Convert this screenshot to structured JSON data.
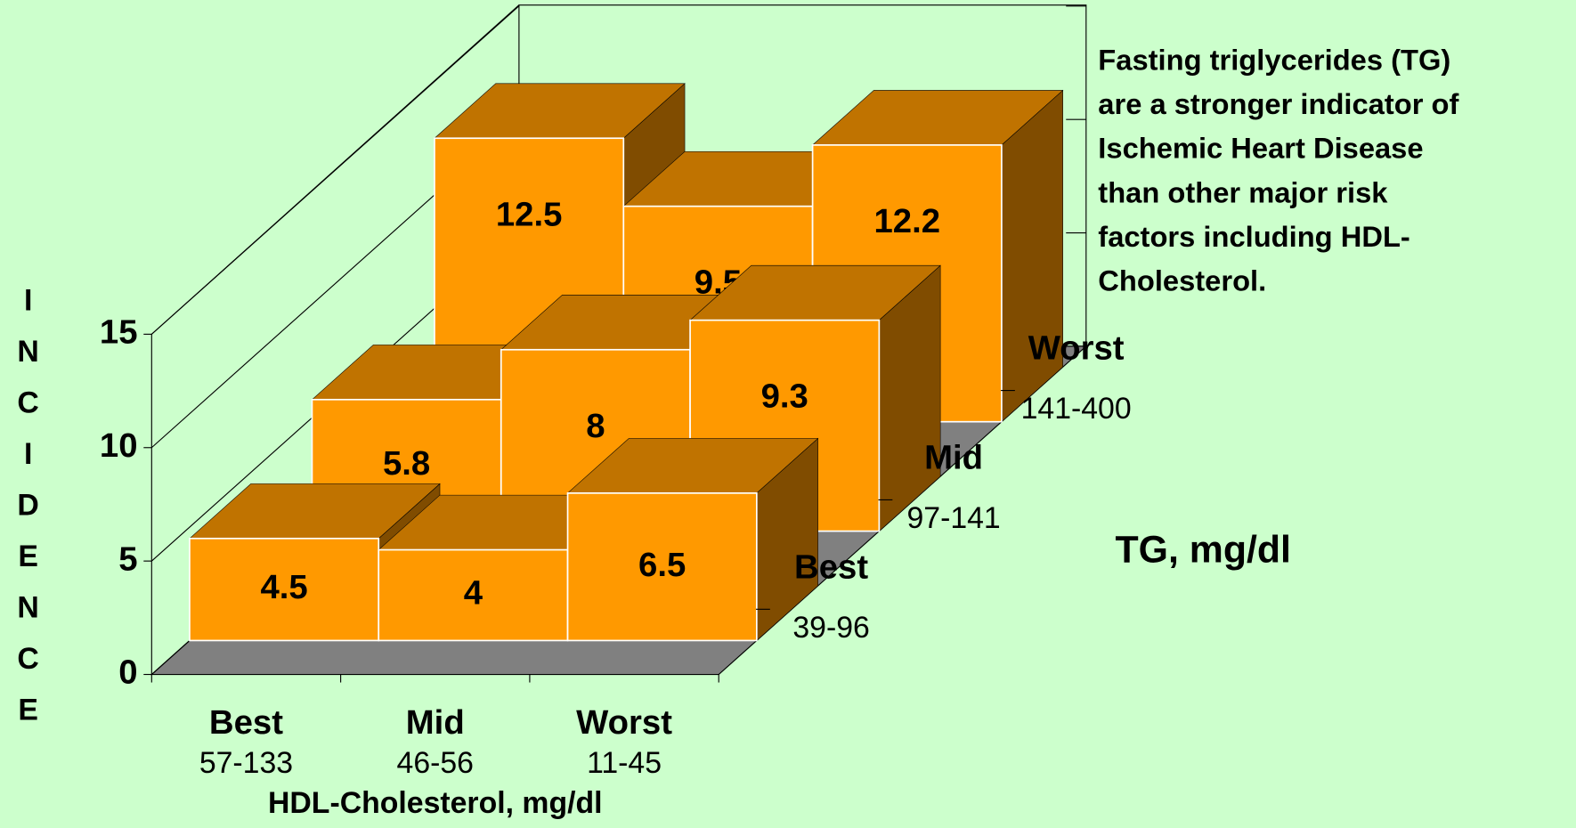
{
  "chart_data": {
    "type": "bar3d",
    "categories": [
      "Best",
      "Mid",
      "Worst"
    ],
    "category_ranges": [
      "57-133",
      "46-56",
      "11-45"
    ],
    "x_label": "HDL-Cholesterol, mg/dl",
    "y_label": "INCIDENCE",
    "z_label": "TG, mg/dl",
    "annotation": [
      "Fasting triglycerides (TG)",
      "are a stronger indicator of",
      "Ischemic Heart Disease",
      "than other major risk",
      "factors including HDL-",
      "Cholesterol."
    ],
    "series": [
      {
        "name": "Best",
        "range": "39-96",
        "color": "#ff9900",
        "values": [
          4.5,
          4,
          6.5
        ]
      },
      {
        "name": "Mid",
        "range": "97-141",
        "color": "#ff9900",
        "values": [
          5.8,
          8,
          9.3
        ]
      },
      {
        "name": "Worst",
        "range": "141-400",
        "color": "#ff9900",
        "values": [
          12.5,
          9.5,
          12.2
        ]
      }
    ],
    "ylim": [
      0,
      15
    ],
    "yticks": [
      0,
      5,
      10,
      15
    ],
    "grid": true
  }
}
